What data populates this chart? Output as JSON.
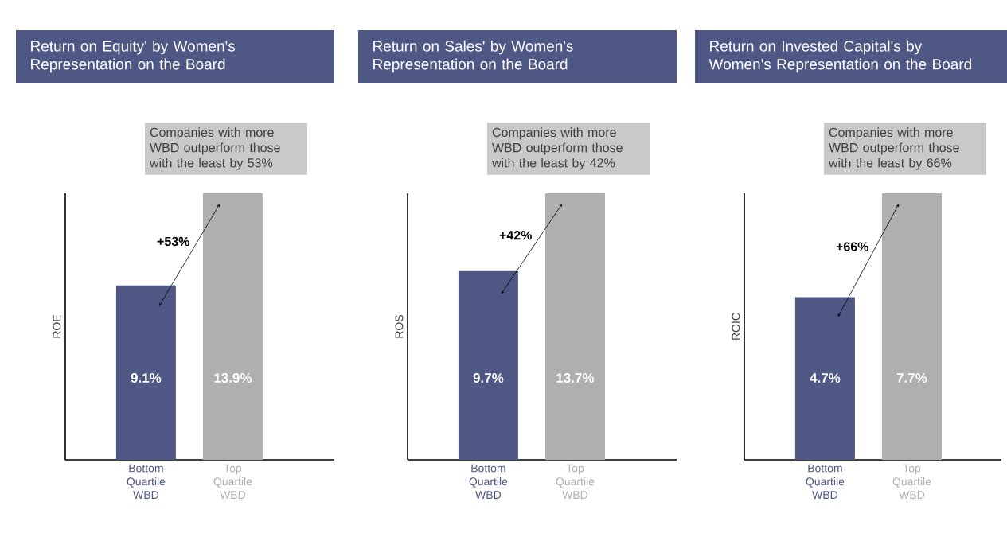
{
  "chart_data": [
    {
      "type": "bar",
      "title": "Return on Equity' by Women's Representation on the Board",
      "ylabel": "ROE",
      "categories": [
        "Bottom Quartile WBD",
        "Top Quartile WBD"
      ],
      "values": [
        9.1,
        13.9
      ],
      "colors": [
        "#4f5785",
        "#afafaf"
      ],
      "value_labels": [
        "9.1%",
        "13.9%"
      ],
      "annotations": [
        "Companies with more WBD outperform those with the least by 53%",
        "+53%"
      ]
    },
    {
      "type": "bar",
      "title": "Return on Sales' by Women's Representation on the Board",
      "ylabel": "ROS",
      "categories": [
        "Bottom Quartile WBD",
        "Top Quartile WBD"
      ],
      "values": [
        9.7,
        13.7
      ],
      "colors": [
        "#4f5785",
        "#afafaf"
      ],
      "value_labels": [
        "9.7%",
        "13.7%"
      ],
      "annotations": [
        "Companies with more WBD outperform those with the least by 42%",
        "+42%"
      ]
    },
    {
      "type": "bar",
      "title": "Return on Invested Capital's by Women's Representation on the Board",
      "ylabel": "ROIC",
      "categories": [
        "Bottom Quartile WBD",
        "Top Quartile WBD"
      ],
      "values": [
        4.7,
        7.7
      ],
      "colors": [
        "#4f5785",
        "#afafaf"
      ],
      "value_labels": [
        "4.7%",
        "7.7%"
      ],
      "annotations": [
        "Companies with more WBD outperform those with the least by 66%",
        "+66%"
      ]
    }
  ]
}
